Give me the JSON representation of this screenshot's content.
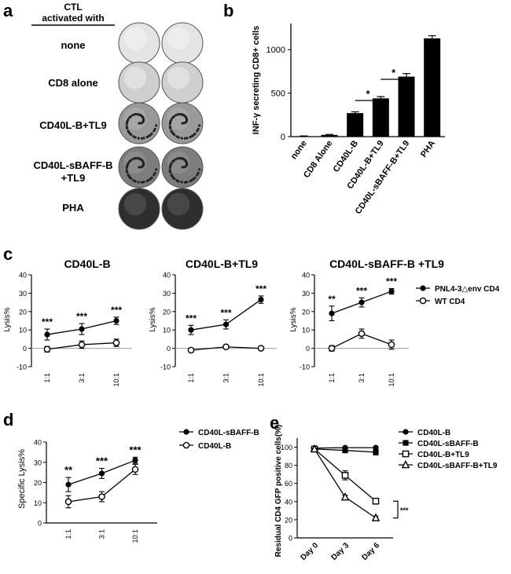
{
  "panels": {
    "a": {
      "letter": "a",
      "header": [
        "CTL",
        "activated with"
      ],
      "rows": [
        "none",
        "CD8 alone",
        "CD40L-B+TL9",
        "CD40L-sBAFF-B",
        "+TL9",
        "PHA"
      ],
      "well_tones": [
        "#e4e4e4",
        "#cfcfcf",
        "#9a9a9a",
        "#7d7d7d",
        "#2e2e2e"
      ]
    },
    "b": {
      "letter": "b",
      "star": "*"
    },
    "c": {
      "letter": "c",
      "ylabel": "Lysis%",
      "legend": [
        "PNL4-3△env CD4",
        "WT CD4"
      ]
    },
    "d": {
      "letter": "d"
    },
    "e": {
      "letter": "e",
      "sig": "***"
    }
  },
  "chart_data": [
    {
      "id": "b",
      "type": "bar",
      "title": "",
      "categories": [
        "none",
        "CD8 Alone",
        "CD40L-B",
        "CD40L-B+TL9",
        "CD40L-sBAFF-B+TL9",
        "PHA"
      ],
      "values": [
        5,
        20,
        270,
        440,
        690,
        1130
      ],
      "errors": [
        3,
        5,
        15,
        20,
        35,
        30
      ],
      "xlabel": "",
      "ylabel": "INF-γ secreting CD8+ cells",
      "ylim": [
        0,
        1300
      ],
      "yticks": [
        0,
        500,
        1000
      ],
      "significance": [
        {
          "from": 2,
          "to": 3,
          "label": "*"
        },
        {
          "from": 3,
          "to": 4,
          "label": "*"
        }
      ]
    },
    {
      "id": "c1",
      "type": "line",
      "title": "CD40L-B",
      "categories": [
        "1:1",
        "3:1",
        "10:1"
      ],
      "ylabel": "Lysis%",
      "ylim": [
        -10,
        40
      ],
      "yticks": [
        -10,
        0,
        10,
        20,
        30,
        40
      ],
      "series": [
        {
          "name": "PNL4-3△env CD4",
          "values": [
            7.5,
            10.5,
            15
          ],
          "errors": [
            3,
            3,
            2
          ]
        },
        {
          "name": "WT CD4",
          "values": [
            -0.5,
            2,
            3
          ],
          "errors": [
            1.5,
            2,
            2
          ]
        }
      ],
      "annotations": [
        "***",
        "***",
        "***"
      ]
    },
    {
      "id": "c2",
      "type": "line",
      "title": "CD40L-B+TL9",
      "categories": [
        "1:1",
        "3:1",
        "10:1"
      ],
      "ylabel": "Lysis%",
      "ylim": [
        -10,
        40
      ],
      "yticks": [
        -10,
        0,
        10,
        20,
        30,
        40
      ],
      "series": [
        {
          "name": "PNL4-3△env CD4",
          "values": [
            10,
            13,
            26.5
          ],
          "errors": [
            2.5,
            2.5,
            2
          ]
        },
        {
          "name": "WT CD4",
          "values": [
            -1,
            0.8,
            0
          ],
          "errors": [
            1,
            0.7,
            0.5
          ]
        }
      ],
      "annotations": [
        "***",
        "***",
        "***"
      ]
    },
    {
      "id": "c3",
      "type": "line",
      "title": "CD40L-sBAFF-B +TL9",
      "categories": [
        "1:1",
        "3:1",
        "10:1"
      ],
      "ylabel": "Lysis%",
      "ylim": [
        -10,
        40
      ],
      "yticks": [
        -10,
        0,
        10,
        20,
        30,
        40
      ],
      "series": [
        {
          "name": "PNL4-3△env CD4",
          "values": [
            19,
            25,
            31
          ],
          "errors": [
            4,
            2.5,
            1.5
          ]
        },
        {
          "name": "WT CD4",
          "values": [
            0,
            8,
            2
          ],
          "errors": [
            1.5,
            2.5,
            2.5
          ]
        }
      ],
      "annotations": [
        "**",
        "***",
        "***"
      ],
      "legend": [
        "PNL4-3△env CD4",
        "WT CD4"
      ]
    },
    {
      "id": "d",
      "type": "line",
      "title": "",
      "categories": [
        "1:1",
        "3:1",
        "10:1"
      ],
      "ylabel": "Specific Lysis%",
      "ylim": [
        0,
        40
      ],
      "yticks": [
        0,
        10,
        20,
        30,
        40
      ],
      "series": [
        {
          "name": "CD40L-sBAFF-B",
          "values": [
            19,
            24.5,
            31
          ],
          "errors": [
            3.5,
            2.5,
            1.5
          ]
        },
        {
          "name": "CD40L-B",
          "values": [
            10.5,
            13,
            26.5
          ],
          "errors": [
            3,
            2.5,
            2.5
          ]
        }
      ],
      "annotations": [
        "**",
        "***",
        "***"
      ],
      "legend": [
        "CD40L-sBAFF-B",
        "CD40L-B"
      ]
    },
    {
      "id": "e",
      "type": "line",
      "title": "",
      "categories": [
        "Day 0",
        "Day 3",
        "Day 6"
      ],
      "ylabel": "Residual CD4 GFP positive cells(%)",
      "ylim": [
        0,
        110
      ],
      "yticks": [
        0,
        20,
        40,
        60,
        80,
        100
      ],
      "series": [
        {
          "name": "CD40L-B",
          "values": [
            99,
            99.5,
            99.5
          ],
          "errors": [
            0.5,
            0.5,
            0.5
          ]
        },
        {
          "name": "CD40L-sBAFF-B",
          "values": [
            98,
            96.5,
            94.5
          ],
          "errors": [
            1,
            1,
            3
          ]
        },
        {
          "name": "CD40L-B+TL9",
          "values": [
            98,
            69,
            40.5
          ],
          "errors": [
            1,
            5,
            2
          ]
        },
        {
          "name": "CD40L-sBAFF-B+TL9",
          "values": [
            98,
            45,
            22
          ],
          "errors": [
            1,
            2,
            2
          ]
        }
      ],
      "legend": [
        "CD40L-B",
        "CD40L-sBAFF-B",
        "CD40L-B+TL9",
        "CD40L-sBAFF-B+TL9"
      ]
    }
  ]
}
